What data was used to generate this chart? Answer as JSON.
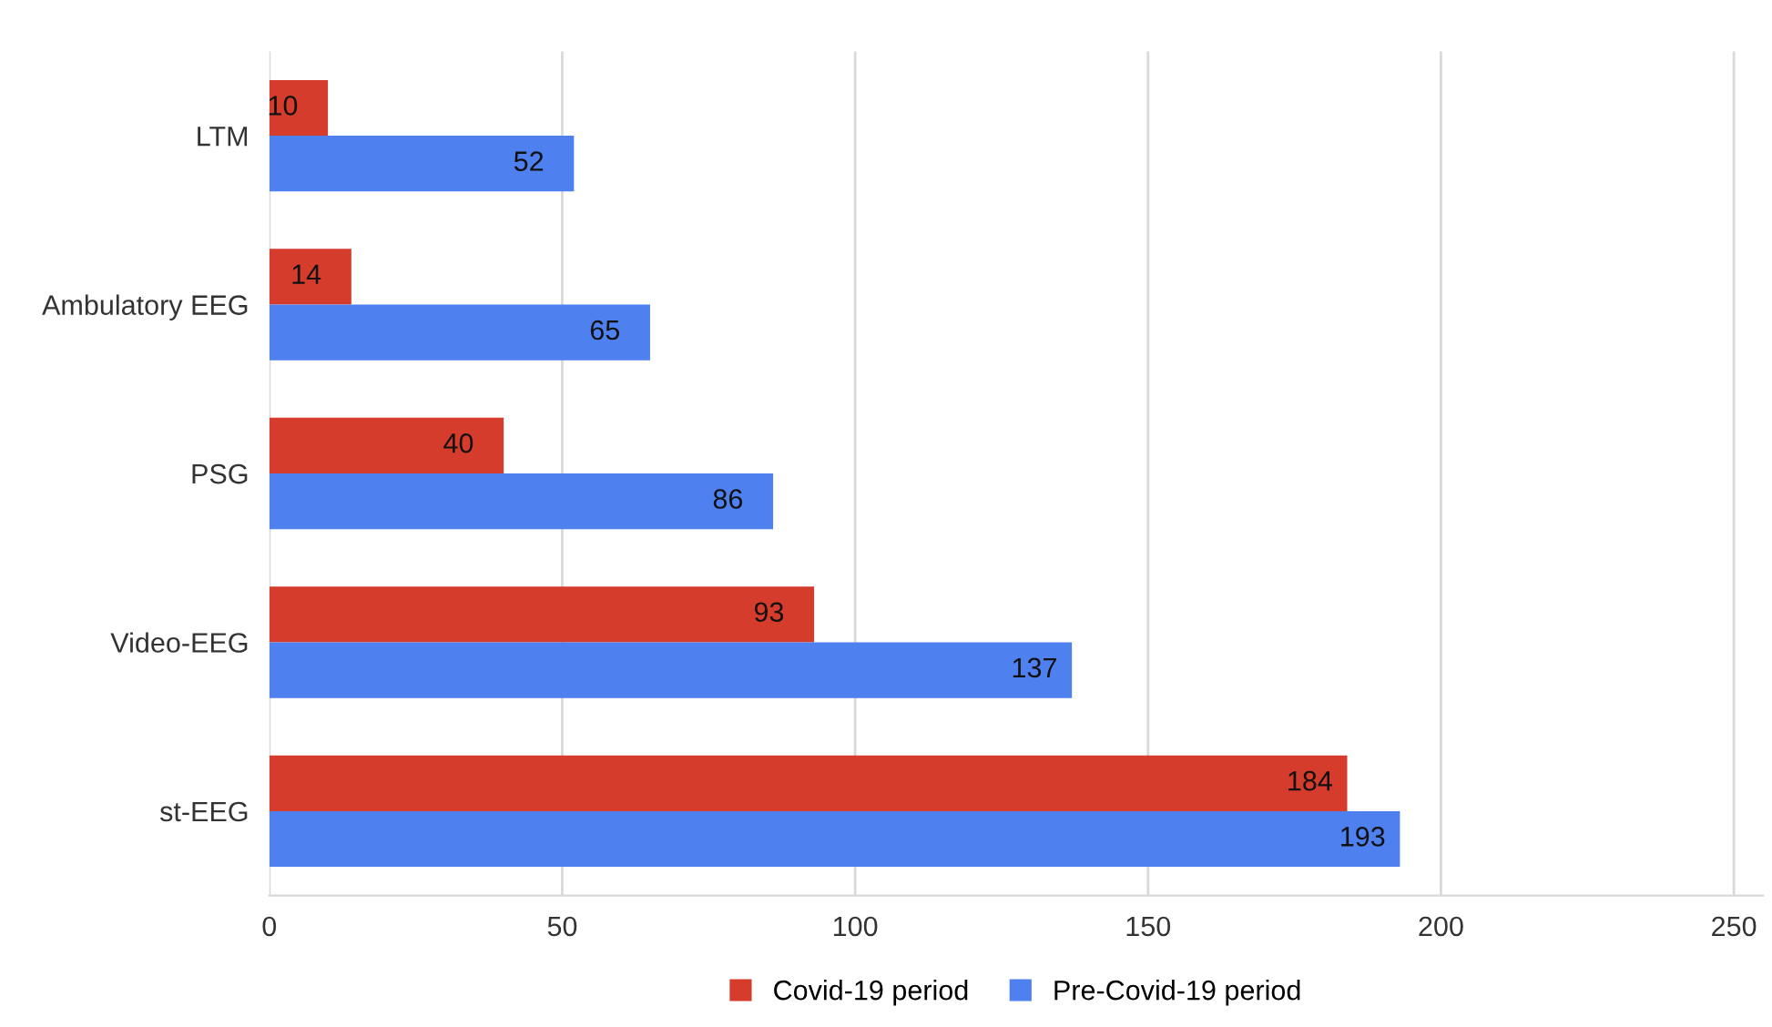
{
  "chart_data": {
    "type": "bar",
    "orientation": "horizontal",
    "categories": [
      "LTM",
      "Ambulatory EEG",
      "PSG",
      "Video-EEG",
      "st-EEG"
    ],
    "series": [
      {
        "name": "Covid-19 period",
        "color": "#d63c2c",
        "values": [
          10,
          14,
          40,
          93,
          184
        ]
      },
      {
        "name": "Pre-Covid-19 period",
        "color": "#4f80ef",
        "values": [
          52,
          65,
          86,
          137,
          193
        ]
      }
    ],
    "xlim": [
      0,
      255
    ],
    "xticks": [
      0,
      50,
      100,
      150,
      200,
      250
    ],
    "grid": "x",
    "legend": "bottom",
    "data_labels": true
  }
}
